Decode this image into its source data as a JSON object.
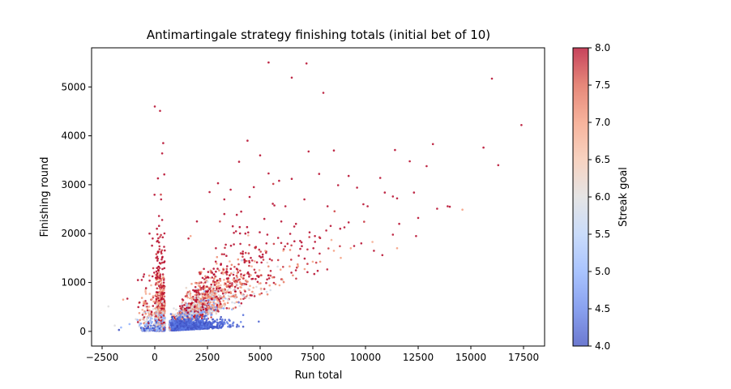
{
  "chart_data": {
    "type": "scatter",
    "title": "Antimartingale strategy finishing totals (initial bet of 10)",
    "xlabel": "Run total",
    "ylabel": "Finishing round",
    "xlim": [
      -3000,
      18500
    ],
    "ylim": [
      -300,
      5800
    ],
    "xticks": [
      {
        "value": -2500,
        "label": "−2500"
      },
      {
        "value": 0,
        "label": "0"
      },
      {
        "value": 2500,
        "label": "2500"
      },
      {
        "value": 5000,
        "label": "5000"
      },
      {
        "value": 7500,
        "label": "7500"
      },
      {
        "value": 10000,
        "label": "10000"
      },
      {
        "value": 12500,
        "label": "12500"
      },
      {
        "value": 15000,
        "label": "15000"
      },
      {
        "value": 17500,
        "label": "17500"
      }
    ],
    "yticks": [
      {
        "value": 0,
        "label": "0"
      },
      {
        "value": 1000,
        "label": "1000"
      },
      {
        "value": 2000,
        "label": "2000"
      },
      {
        "value": 3000,
        "label": "3000"
      },
      {
        "value": 4000,
        "label": "4000"
      },
      {
        "value": 5000,
        "label": "5000"
      }
    ],
    "grid": false,
    "colorbar": {
      "label": "Streak goal",
      "cmap": "coolwarm",
      "range": [
        4.0,
        8.0
      ],
      "ticks": [
        {
          "value": 4.0,
          "label": "4.0"
        },
        {
          "value": 4.5,
          "label": "4.5"
        },
        {
          "value": 5.0,
          "label": "5.0"
        },
        {
          "value": 5.5,
          "label": "5.5"
        },
        {
          "value": 6.0,
          "label": "6.0"
        },
        {
          "value": 6.5,
          "label": "6.5"
        },
        {
          "value": 7.0,
          "label": "7.0"
        },
        {
          "value": 7.5,
          "label": "7.5"
        },
        {
          "value": 8.0,
          "label": "8.0"
        }
      ],
      "colors": [
        "#3b4cc0",
        "#6282ea",
        "#8db0fe",
        "#b8d0f9",
        "#dddcdc",
        "#f5c4ac",
        "#f49a7b",
        "#de604d",
        "#b40426"
      ]
    },
    "points": [
      [
        5400,
        5500,
        8
      ],
      [
        7200,
        5480,
        8
      ],
      [
        6500,
        5190,
        8
      ],
      [
        16000,
        5170,
        8
      ],
      [
        8000,
        4880,
        8
      ],
      [
        0,
        4600,
        8
      ],
      [
        250,
        4510,
        8
      ],
      [
        17400,
        4220,
        8
      ],
      [
        400,
        3850,
        8
      ],
      [
        4400,
        3900,
        8
      ],
      [
        13200,
        3830,
        8
      ],
      [
        15600,
        3760,
        8
      ],
      [
        11400,
        3710,
        8
      ],
      [
        8500,
        3700,
        8
      ],
      [
        350,
        3640,
        8
      ],
      [
        5000,
        3600,
        8
      ],
      [
        7300,
        3680,
        8
      ],
      [
        16300,
        3400,
        8
      ],
      [
        12100,
        3480,
        8
      ],
      [
        4000,
        3470,
        8
      ],
      [
        12900,
        3380,
        8
      ],
      [
        5400,
        3230,
        8
      ],
      [
        10700,
        3140,
        8
      ],
      [
        9200,
        3180,
        8
      ],
      [
        7800,
        3220,
        8
      ],
      [
        450,
        3210,
        8
      ],
      [
        150,
        3130,
        8
      ],
      [
        6500,
        3120,
        8
      ],
      [
        3000,
        3030,
        8
      ],
      [
        5900,
        3080,
        8
      ],
      [
        3600,
        2900,
        8
      ],
      [
        4700,
        2950,
        8
      ],
      [
        9600,
        2940,
        8
      ],
      [
        2600,
        2850,
        8
      ],
      [
        8700,
        2990,
        8
      ],
      [
        11300,
        2760,
        8
      ],
      [
        12300,
        2840,
        8
      ],
      [
        3300,
        2700,
        8
      ],
      [
        4500,
        2750,
        8
      ],
      [
        7100,
        2700,
        8
      ],
      [
        11500,
        2720,
        8
      ],
      [
        300,
        2700,
        8
      ],
      [
        5600,
        2610,
        8
      ],
      [
        9900,
        2600,
        8
      ],
      [
        13400,
        2510,
        8
      ],
      [
        13900,
        2560,
        8
      ],
      [
        14600,
        2490,
        7
      ],
      [
        10100,
        2560,
        8
      ],
      [
        8200,
        2560,
        8
      ],
      [
        4100,
        2450,
        8
      ],
      [
        12500,
        2320,
        8
      ],
      [
        6200,
        2560,
        8
      ],
      [
        3300,
        2400,
        8
      ],
      [
        200,
        2360,
        8
      ],
      [
        5200,
        2300,
        8
      ],
      [
        11600,
        2200,
        8
      ],
      [
        2000,
        2250,
        8
      ],
      [
        9200,
        2230,
        8
      ],
      [
        6700,
        2200,
        8
      ],
      [
        8800,
        2100,
        8
      ],
      [
        350,
        2280,
        8
      ],
      [
        -250,
        2000,
        8
      ],
      [
        100,
        2100,
        8
      ],
      [
        3700,
        2150,
        8
      ],
      [
        11300,
        1980,
        8
      ],
      [
        12400,
        1950,
        8
      ],
      [
        4300,
        2000,
        8
      ],
      [
        7600,
        1950,
        8
      ],
      [
        9800,
        1800,
        8
      ],
      [
        1700,
        1950,
        7
      ],
      [
        -100,
        1900,
        8
      ],
      [
        10800,
        1560,
        8
      ],
      [
        11500,
        1700,
        7
      ],
      [
        1600,
        1900,
        8
      ],
      [
        2900,
        1700,
        8
      ],
      [
        5300,
        1800,
        8
      ],
      [
        6900,
        1850,
        8
      ],
      [
        9300,
        1700,
        7
      ],
      [
        8500,
        1650,
        7
      ],
      [
        10400,
        1650,
        8
      ],
      [
        -800,
        1050,
        8
      ],
      [
        -1300,
        670,
        8
      ],
      [
        -1500,
        650,
        7
      ],
      [
        -2200,
        510,
        6
      ],
      [
        -1900,
        120,
        6
      ],
      [
        -1600,
        80,
        5
      ],
      [
        -1200,
        150,
        5
      ],
      [
        -900,
        250,
        6
      ],
      [
        -1700,
        30,
        4
      ],
      [
        14000,
        2550,
        8
      ]
    ],
    "clusters": [
      {
        "cx": 2300,
        "cy": 860,
        "sx": 3600,
        "sy": 780,
        "n": 1050,
        "mode": "upper"
      },
      {
        "cx": 2300,
        "cy": 430,
        "sx": 3000,
        "sy": 420,
        "n": 900,
        "mode": "band"
      },
      {
        "cx": 1500,
        "cy": 120,
        "sx": 1300,
        "sy": 160,
        "n": 800,
        "mode": "low"
      },
      {
        "cx": 250,
        "cy": 600,
        "sx": 180,
        "sy": 900,
        "n": 700,
        "mode": "left"
      }
    ]
  }
}
